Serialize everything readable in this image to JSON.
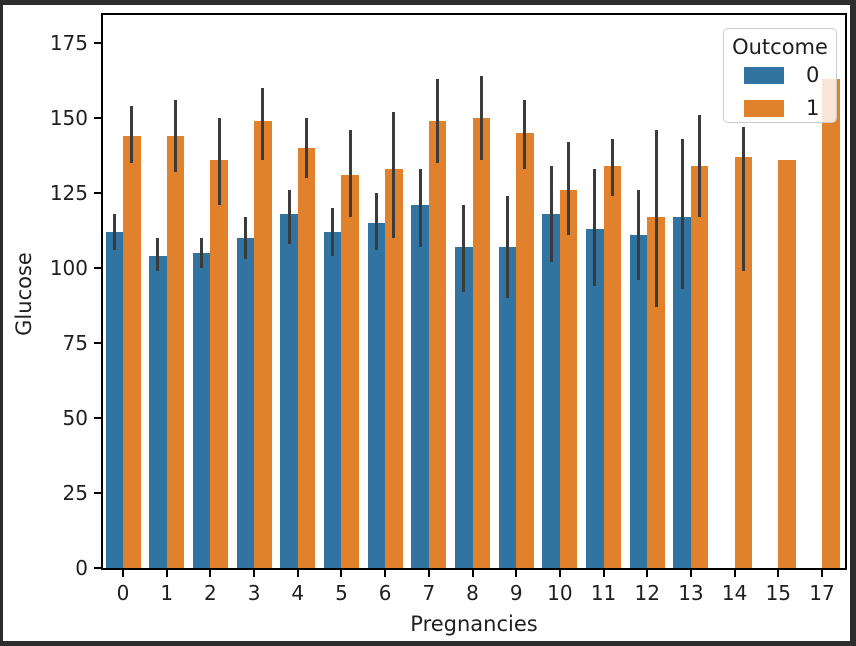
{
  "chart_data": {
    "type": "bar",
    "title": "",
    "xlabel": "Pregnancies",
    "ylabel": "Glucose",
    "categories": [
      "0",
      "1",
      "2",
      "3",
      "4",
      "5",
      "6",
      "7",
      "8",
      "9",
      "10",
      "11",
      "12",
      "13",
      "14",
      "15",
      "17"
    ],
    "series": [
      {
        "name": "0",
        "color": "#3274A1",
        "values": [
          112,
          104,
          105,
          110,
          118,
          112,
          115,
          121,
          107,
          107,
          118,
          113,
          111,
          117,
          null,
          null,
          null
        ],
        "errors": [
          [
            106,
            118
          ],
          [
            99,
            110
          ],
          [
            100,
            110
          ],
          [
            103,
            117
          ],
          [
            108,
            126
          ],
          [
            104,
            120
          ],
          [
            106,
            125
          ],
          [
            107,
            133
          ],
          [
            92,
            121
          ],
          [
            90,
            124
          ],
          [
            102,
            134
          ],
          [
            94,
            133
          ],
          [
            96,
            126
          ],
          [
            93,
            143
          ],
          null,
          null,
          null
        ]
      },
      {
        "name": "1",
        "color": "#E1812C",
        "values": [
          144,
          144,
          136,
          149,
          140,
          131,
          133,
          149,
          150,
          145,
          126,
          134,
          117,
          134,
          137,
          136,
          163
        ],
        "errors": [
          [
            135,
            154
          ],
          [
            132,
            156
          ],
          [
            121,
            150
          ],
          [
            136,
            160
          ],
          [
            130,
            150
          ],
          [
            117,
            146
          ],
          [
            110,
            152
          ],
          [
            135,
            163
          ],
          [
            136,
            164
          ],
          [
            133,
            156
          ],
          [
            111,
            142
          ],
          [
            124,
            143
          ],
          [
            87,
            146
          ],
          [
            117,
            151
          ],
          [
            99,
            147
          ],
          null,
          null
        ]
      }
    ],
    "yticks": [
      0,
      25,
      50,
      75,
      100,
      125,
      150,
      175
    ],
    "ylim": [
      0,
      184
    ],
    "grid": false,
    "error_bar_color": "#3b3b3b",
    "legend": {
      "title": "Outcome",
      "position": "upper right",
      "entries": [
        {
          "label": "0",
          "color": "#3274A1"
        },
        {
          "label": "1",
          "color": "#E1812C"
        }
      ]
    }
  },
  "colors": {
    "figure_background": "#ffffff",
    "page_border": "#2d2d2d",
    "axis_spine": "#000000",
    "tick_text": "#1f1f1f",
    "legend_border": "#cccccc"
  }
}
